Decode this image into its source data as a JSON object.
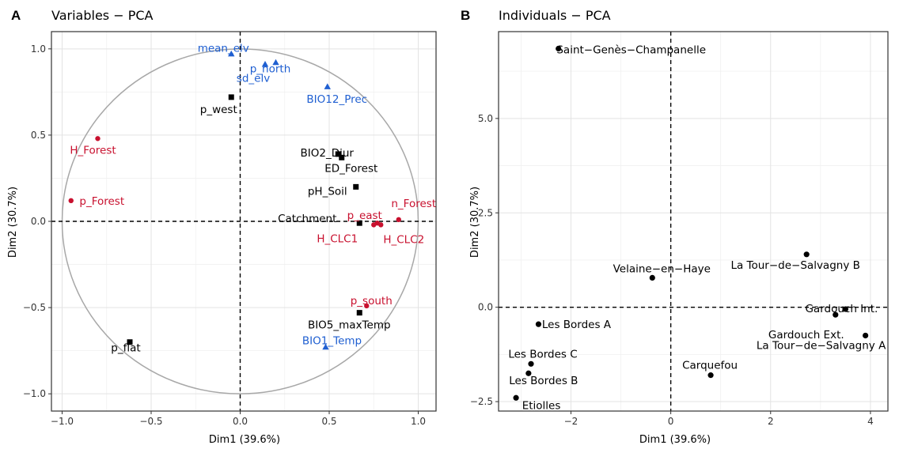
{
  "chart_data": [
    {
      "type": "scatter",
      "panel": "A",
      "title": "Variables − PCA",
      "xlabel": "Dim1 (39.6%)",
      "ylabel": "Dim2 (30.7%)",
      "xlim": [
        -1.06,
        1.1
      ],
      "ylim": [
        -1.1,
        1.1
      ],
      "xticks": [
        -1.0,
        -0.5,
        0.0,
        0.5,
        1.0
      ],
      "xtick_labels": [
        "−1.0",
        "−0.5",
        "0.0",
        "0.5",
        "1.0"
      ],
      "yticks": [
        -1.0,
        -0.5,
        0.0,
        0.5,
        1.0
      ],
      "ytick_labels": [
        "−1.0",
        "−0.5",
        "0.0",
        "0.5",
        "1.0"
      ],
      "grid": true,
      "unit_circle": true,
      "colors": {
        "black": "#000000",
        "red": "#C8102E",
        "blue": "#1F5FD1"
      },
      "points": [
        {
          "name": "mean_elv",
          "x": -0.05,
          "y": 0.97,
          "shape": "triangle",
          "color": "blue"
        },
        {
          "name": "p_north",
          "x": 0.2,
          "y": 0.92,
          "shape": "triangle",
          "color": "blue"
        },
        {
          "name": "sd_elv",
          "x": 0.14,
          "y": 0.91,
          "shape": "triangle",
          "color": "blue"
        },
        {
          "name": "BIO12_Prec",
          "x": 0.49,
          "y": 0.78,
          "shape": "triangle",
          "color": "blue"
        },
        {
          "name": "p_west",
          "x": -0.05,
          "y": 0.72,
          "shape": "square",
          "color": "black"
        },
        {
          "name": "H_Forest",
          "x": -0.8,
          "y": 0.48,
          "shape": "circle",
          "color": "red"
        },
        {
          "name": "BIO2_Diur",
          "x": 0.55,
          "y": 0.39,
          "shape": "square",
          "color": "black"
        },
        {
          "name": "ED_Forest",
          "x": 0.57,
          "y": 0.37,
          "shape": "square",
          "color": "black"
        },
        {
          "name": "pH_Soil",
          "x": 0.65,
          "y": 0.2,
          "shape": "square",
          "color": "black"
        },
        {
          "name": "p_Forest",
          "x": -0.95,
          "y": 0.12,
          "shape": "circle",
          "color": "red"
        },
        {
          "name": "n_Forest",
          "x": 0.89,
          "y": 0.01,
          "shape": "circle",
          "color": "red"
        },
        {
          "name": "Catchment",
          "x": 0.67,
          "y": -0.01,
          "shape": "square",
          "color": "black"
        },
        {
          "name": "p_east",
          "x": 0.77,
          "y": -0.01,
          "shape": "circle",
          "color": "red"
        },
        {
          "name": "H_CLC1",
          "x": 0.75,
          "y": -0.02,
          "shape": "circle",
          "color": "red"
        },
        {
          "name": "H_CLC2",
          "x": 0.79,
          "y": -0.02,
          "shape": "circle",
          "color": "red"
        },
        {
          "name": "p_south",
          "x": 0.71,
          "y": -0.49,
          "shape": "circle",
          "color": "red"
        },
        {
          "name": "BIO5_maxTemp",
          "x": 0.67,
          "y": -0.53,
          "shape": "square",
          "color": "black"
        },
        {
          "name": "BIO1_Temp",
          "x": 0.48,
          "y": -0.73,
          "shape": "triangle",
          "color": "blue"
        },
        {
          "name": "p_flat",
          "x": -0.62,
          "y": -0.7,
          "shape": "square",
          "color": "black"
        }
      ]
    },
    {
      "type": "scatter",
      "panel": "B",
      "title": "Individuals − PCA",
      "xlabel": "Dim1 (39.6%)",
      "ylabel": "Dim2 (30.7%)",
      "xlim": [
        -3.45,
        4.35
      ],
      "ylim": [
        -2.75,
        7.3
      ],
      "xticks": [
        -2,
        0,
        2,
        4
      ],
      "xtick_labels": [
        "−2",
        "0",
        "2",
        "4"
      ],
      "yticks": [
        -2.5,
        0.0,
        2.5,
        5.0
      ],
      "ytick_labels": [
        "−2.5",
        "0.0",
        "2.5",
        "5.0"
      ],
      "grid": true,
      "points": [
        {
          "name": "Saint−Genès−Champanelle",
          "x": -2.25,
          "y": 6.85
        },
        {
          "name": "La Tour−de−Salvagny B",
          "x": 2.72,
          "y": 1.4
        },
        {
          "name": "Velaine−en−Haye",
          "x": -0.37,
          "y": 0.78
        },
        {
          "name": "Gardouch Int.",
          "x": 3.5,
          "y": -0.05
        },
        {
          "name": "Gardouch Ext.",
          "x": 3.3,
          "y": -0.2
        },
        {
          "name": "La Tour−de−Salvagny A",
          "x": 3.9,
          "y": -0.75
        },
        {
          "name": "Les Bordes A",
          "x": -2.65,
          "y": -0.45
        },
        {
          "name": "Les Bordes C",
          "x": -2.8,
          "y": -1.5
        },
        {
          "name": "Carquefou",
          "x": 0.8,
          "y": -1.8
        },
        {
          "name": "Les Bordes B",
          "x": -2.85,
          "y": -1.75
        },
        {
          "name": "Etiolles",
          "x": -3.1,
          "y": -2.4
        }
      ]
    }
  ]
}
